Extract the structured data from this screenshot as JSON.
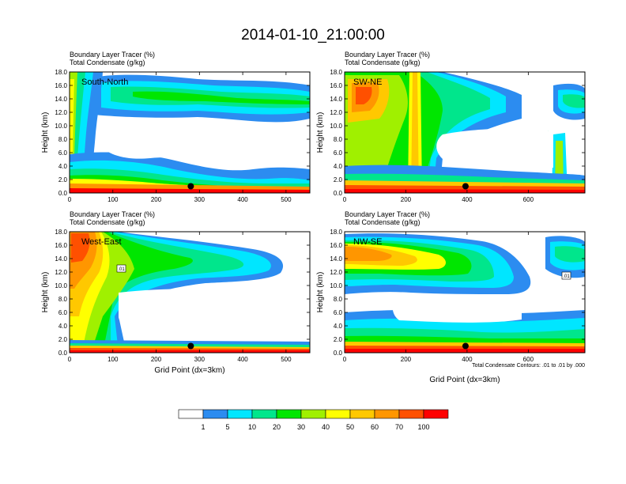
{
  "page_title": "2014-01-10_21:00:00",
  "chart_data": [
    {
      "type": "heatmap",
      "subtitle_line1": "Boundary Layer Tracer   (%)",
      "subtitle_line2": "Total Condensate   (g/kg)",
      "annotation": "South-North",
      "ylabel": "Height (km)",
      "xlabel": "",
      "xlim": [
        0,
        555
      ],
      "ylim": [
        0,
        18
      ],
      "xticks": [
        "0",
        "100",
        "200",
        "300",
        "400",
        "500"
      ],
      "xtick_values": [
        0,
        100,
        200,
        300,
        400,
        500
      ],
      "yticks": [
        "0.0",
        "2.0",
        "4.0",
        "6.0",
        "8.0",
        "10.0",
        "12.0",
        "14.0",
        "16.0",
        "18.0"
      ],
      "marker": {
        "x": 280,
        "y": 1.0
      },
      "contour_label": "",
      "footnote": ""
    },
    {
      "type": "heatmap",
      "subtitle_line1": "Boundary Layer Tracer   (%)",
      "subtitle_line2": "Total Condensate   (g/kg)",
      "annotation": "SW-NE",
      "ylabel": "Height (km)",
      "xlabel": "",
      "xlim": [
        0,
        785
      ],
      "ylim": [
        0,
        18
      ],
      "xticks": [
        "0",
        "200",
        "400",
        "600"
      ],
      "xtick_values": [
        0,
        200,
        400,
        600
      ],
      "yticks": [
        "0.0",
        "2.0",
        "4.0",
        "6.0",
        "8.0",
        "10.0",
        "12.0",
        "14.0",
        "16.0",
        "18.0"
      ],
      "marker": {
        "x": 395,
        "y": 1.0
      },
      "contour_label": "",
      "footnote": ""
    },
    {
      "type": "heatmap",
      "subtitle_line1": "Boundary Layer Tracer   (%)",
      "subtitle_line2": "Total Condensate   (g/kg)",
      "annotation": "West-East",
      "ylabel": "Height (km)",
      "xlabel": "Grid Point (dx=3km)",
      "xlim": [
        0,
        555
      ],
      "ylim": [
        0,
        18
      ],
      "xticks": [
        "0",
        "100",
        "200",
        "300",
        "400",
        "500"
      ],
      "xtick_values": [
        0,
        100,
        200,
        300,
        400,
        500
      ],
      "yticks": [
        "0.0",
        "2.0",
        "4.0",
        "6.0",
        "8.0",
        "10.0",
        "12.0",
        "14.0",
        "16.0",
        "18.0"
      ],
      "marker": {
        "x": 280,
        "y": 1.0
      },
      "contour_label": ".01",
      "footnote": ""
    },
    {
      "type": "heatmap",
      "subtitle_line1": "Boundary Layer Tracer   (%)",
      "subtitle_line2": "Total Condensate   (g/kg)",
      "annotation": "NW-SE",
      "ylabel": "Height (km)",
      "xlabel": "Grid Point (dx=3km)",
      "xlim": [
        0,
        785
      ],
      "ylim": [
        0,
        18
      ],
      "xticks": [
        "0",
        "200",
        "400",
        "600"
      ],
      "xtick_values": [
        0,
        200,
        400,
        600
      ],
      "yticks": [
        "0.0",
        "2.0",
        "4.0",
        "6.0",
        "8.0",
        "10.0",
        "12.0",
        "14.0",
        "16.0",
        "18.0"
      ],
      "marker": {
        "x": 395,
        "y": 1.0
      },
      "contour_label": ".01",
      "footnote": "Total Condensate Contours: .01 to .01 by .000"
    }
  ],
  "colorbar": {
    "labels": [
      "1",
      "5",
      "10",
      "20",
      "30",
      "40",
      "50",
      "60",
      "70",
      "100"
    ],
    "colors": [
      "#ffffff",
      "#2c8cf0",
      "#00e6ff",
      "#00e68c",
      "#00e600",
      "#a0f000",
      "#ffff00",
      "#ffc800",
      "#ff9600",
      "#ff5000",
      "#ff0000"
    ]
  }
}
